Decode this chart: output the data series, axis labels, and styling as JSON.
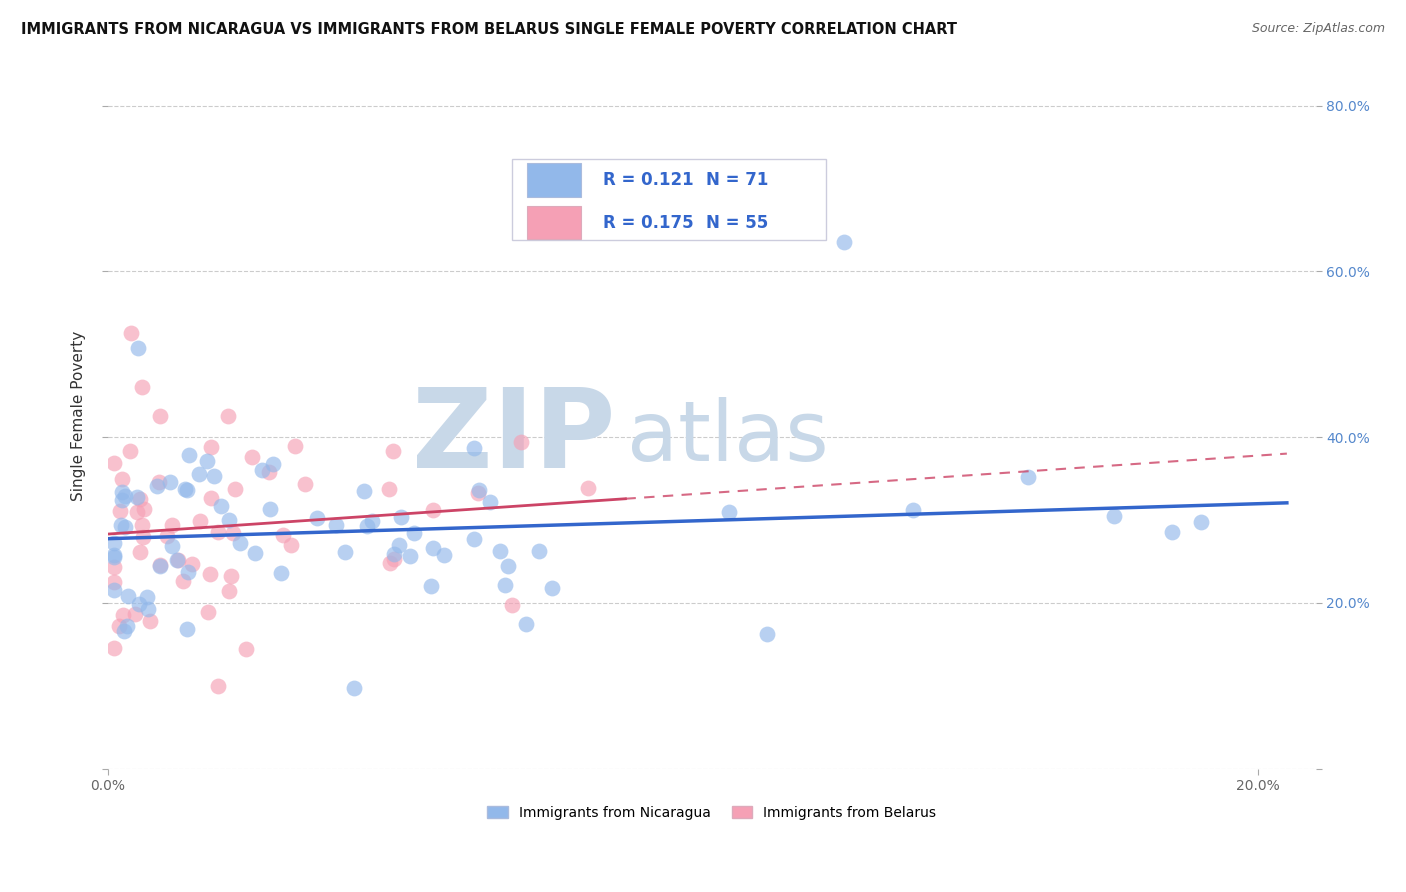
{
  "title": "IMMIGRANTS FROM NICARAGUA VS IMMIGRANTS FROM BELARUS SINGLE FEMALE POVERTY CORRELATION CHART",
  "source": "Source: ZipAtlas.com",
  "ylabel": "Single Female Poverty",
  "xlim": [
    0.0,
    0.21
  ],
  "ylim": [
    0.0,
    0.85
  ],
  "yticks": [
    0.0,
    0.2,
    0.4,
    0.6,
    0.8
  ],
  "right_yticklabels": [
    "",
    "20.0%",
    "40.0%",
    "60.0%",
    "80.0%"
  ],
  "xtick_left": 0.0,
  "xtick_right": 0.2,
  "xtick_left_label": "0.0%",
  "xtick_right_label": "20.0%",
  "nicaragua_R": 0.121,
  "nicaragua_N": 71,
  "belarus_R": 0.175,
  "belarus_N": 55,
  "nicaragua_color": "#92b8ea",
  "belarus_color": "#f5a0b5",
  "nicaragua_line_color": "#3366cc",
  "belarus_line_color": "#cc4466",
  "background_color": "#ffffff",
  "watermark_zip": "ZIP",
  "watermark_atlas": "atlas",
  "watermark_color": "#c8d8e8",
  "grid_color": "#cccccc",
  "legend_box_color": "#f0f4f8",
  "legend_border_color": "#bbbbcc"
}
